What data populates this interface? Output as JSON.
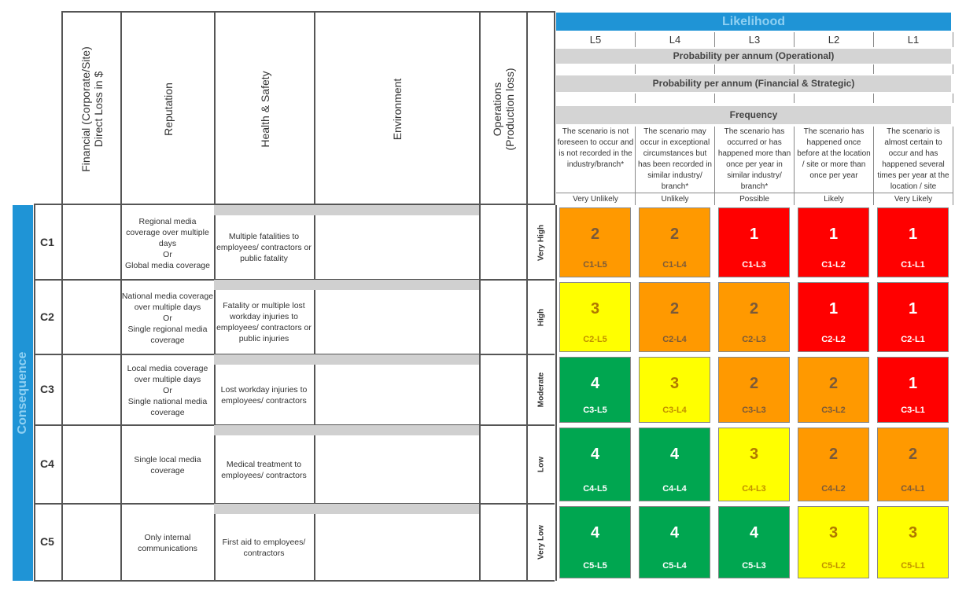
{
  "columns": {
    "financial": "Financial (Corporate/Site)\nDirect Loss in $",
    "reputation": "Reputation",
    "health_safety": "Health & Safety",
    "environment": "Environment",
    "operations": "Operations\n(Production loss)"
  },
  "likelihood": {
    "title": "Likelihood",
    "levels": [
      "L5",
      "L4",
      "L3",
      "L2",
      "L1"
    ],
    "prob_operational": "Probability per annum (Operational)",
    "prob_financial": "Probability per annum (Financial & Strategic)",
    "frequency": "Frequency",
    "descriptions": [
      "The scenario is not foreseen to occur and is not recorded in the industry/branch*",
      "The scenario may occur in exceptional circumstances but has been recorded in similar industry/ branch*",
      "The scenario has occurred or has happened more than once per year in similar industry/ branch*",
      "The scenario has happened once before at the location / site or more than once per year",
      "The scenario is almost certain to occur and has happened several times per year at the location / site"
    ],
    "names": [
      "Very Unlikely",
      "Unlikely",
      "Possible",
      "Likely",
      "Very Likely"
    ]
  },
  "consequence": {
    "title": "Consequence",
    "rows": [
      {
        "id": "C1",
        "reputation": "Regional media coverage over multiple days\nOr\nGlobal media coverage",
        "health": "Multiple fatalities to employees/ contractors or public fatality",
        "severity": "Very High"
      },
      {
        "id": "C2",
        "reputation": "National media coverage over multiple days\nOr\nSingle regional media coverage",
        "health": "Fatality or multiple lost workday injuries to employees/ contractors or public injuries",
        "severity": "High"
      },
      {
        "id": "C3",
        "reputation": "Local media coverage over multiple days\nOr\nSingle national media coverage",
        "health": "Lost workday injuries to employees/ contractors",
        "severity": "Moderate"
      },
      {
        "id": "C4",
        "reputation": "Single local media coverage",
        "health": "Medical treatment to employees/ contractors",
        "severity": "Low"
      },
      {
        "id": "C5",
        "reputation": "Only internal communications",
        "health": "First aid to employees/ contractors",
        "severity": "Very Low"
      }
    ]
  },
  "matrix": [
    [
      {
        "v": "2",
        "code": "C1-L5",
        "color": "orange"
      },
      {
        "v": "2",
        "code": "C1-L4",
        "color": "orange"
      },
      {
        "v": "1",
        "code": "C1-L3",
        "color": "red"
      },
      {
        "v": "1",
        "code": "C1-L2",
        "color": "red"
      },
      {
        "v": "1",
        "code": "C1-L1",
        "color": "red"
      }
    ],
    [
      {
        "v": "3",
        "code": "C2-L5",
        "color": "yellow"
      },
      {
        "v": "2",
        "code": "C2-L4",
        "color": "orange"
      },
      {
        "v": "2",
        "code": "C2-L3",
        "color": "orange"
      },
      {
        "v": "1",
        "code": "C2-L2",
        "color": "red"
      },
      {
        "v": "1",
        "code": "C2-L1",
        "color": "red"
      }
    ],
    [
      {
        "v": "4",
        "code": "C3-L5",
        "color": "green"
      },
      {
        "v": "3",
        "code": "C3-L4",
        "color": "yellow"
      },
      {
        "v": "2",
        "code": "C3-L3",
        "color": "orange"
      },
      {
        "v": "2",
        "code": "C3-L2",
        "color": "orange"
      },
      {
        "v": "1",
        "code": "C3-L1",
        "color": "red"
      }
    ],
    [
      {
        "v": "4",
        "code": "C4-L5",
        "color": "green"
      },
      {
        "v": "4",
        "code": "C4-L4",
        "color": "green"
      },
      {
        "v": "3",
        "code": "C4-L3",
        "color": "yellow"
      },
      {
        "v": "2",
        "code": "C4-L2",
        "color": "orange"
      },
      {
        "v": "2",
        "code": "C4-L1",
        "color": "orange"
      }
    ],
    [
      {
        "v": "4",
        "code": "C5-L5",
        "color": "green"
      },
      {
        "v": "4",
        "code": "C5-L4",
        "color": "green"
      },
      {
        "v": "4",
        "code": "C5-L3",
        "color": "green"
      },
      {
        "v": "3",
        "code": "C5-L2",
        "color": "yellow"
      },
      {
        "v": "3",
        "code": "C5-L1",
        "color": "yellow"
      }
    ]
  ],
  "colors": {
    "red": "#ff0000",
    "orange": "#ff9900",
    "yellow": "#ffff00",
    "green": "#00a650",
    "accent_blue": "#1f94d6"
  }
}
